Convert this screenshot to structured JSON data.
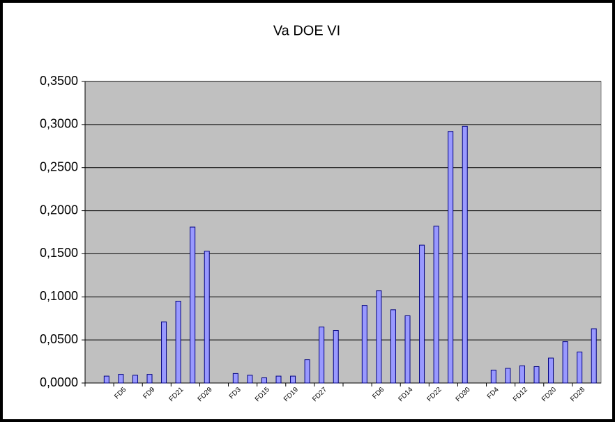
{
  "chart_data": {
    "type": "bar",
    "title": "Va DOE VI",
    "categories": [
      null,
      null,
      "FD5",
      null,
      "FD9",
      null,
      "FD21",
      null,
      "FD29",
      null,
      "FD3",
      null,
      "FD15",
      null,
      "FD19",
      null,
      "FD27",
      null,
      null,
      null,
      "FD6",
      null,
      "FD14",
      null,
      "FD22",
      null,
      "FD30",
      null,
      "FD4",
      null,
      "FD12",
      null,
      "FD20",
      null,
      "FD28",
      null
    ],
    "values": [
      null,
      0.008,
      0.01,
      0.009,
      0.01,
      0.071,
      0.095,
      0.181,
      0.153,
      null,
      0.011,
      0.009,
      0.006,
      0.008,
      0.008,
      0.027,
      0.065,
      0.061,
      null,
      0.09,
      0.107,
      0.085,
      0.078,
      0.16,
      0.182,
      0.292,
      0.298,
      null,
      0.015,
      0.017,
      0.02,
      0.019,
      0.029,
      0.048,
      0.036,
      0.063
    ],
    "color": "#9999ff",
    "ylim": [
      0,
      0.35
    ],
    "yticks": [
      {
        "value": 0,
        "label": "0,0000"
      },
      {
        "value": 0.05,
        "label": "0,0500"
      },
      {
        "value": 0.1,
        "label": "0,1000"
      },
      {
        "value": 0.15,
        "label": "0,1500"
      },
      {
        "value": 0.2,
        "label": "0,2000"
      },
      {
        "value": 0.25,
        "label": "0,2500"
      },
      {
        "value": 0.3,
        "label": "0,3000"
      },
      {
        "value": 0.35,
        "label": "0,3500"
      }
    ],
    "grid": true
  }
}
